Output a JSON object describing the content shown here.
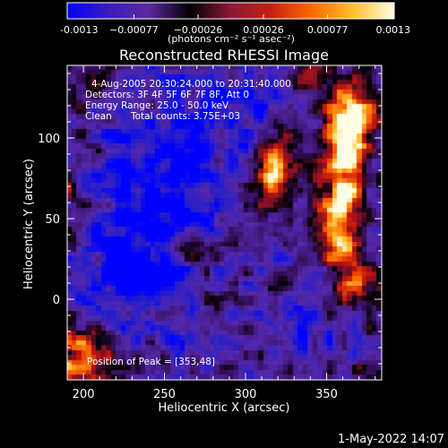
{
  "chart_data": {
    "type": "heatmap",
    "title": "Reconstructed RHESSI Image",
    "xlabel": "Heliocentric X (arcsec)",
    "ylabel": "Heliocentric Y (arcsec)",
    "xlim": [
      190,
      384
    ],
    "ylim": [
      -50,
      145
    ],
    "x_ticks": [
      200,
      250,
      300,
      350
    ],
    "y_ticks": [
      0,
      50,
      100
    ],
    "colorbar": {
      "label": "(photons cm⁻² s⁻¹ asec⁻²)",
      "range": [
        -0.0013,
        0.0013
      ],
      "tick_values": [
        -0.0013,
        -0.00077,
        -0.00026,
        0.00026,
        0.00077,
        0.0013
      ],
      "tick_labels": [
        "-0.0013",
        "−0.00077",
        "−0.00026",
        "0.00026",
        "0.00077",
        "0.0013"
      ],
      "colors": [
        "#0000ff",
        "#3a1bbf",
        "#5a2aa0",
        "#000000",
        "#8a1a3a",
        "#c82010",
        "#ff6a00",
        "#ffc030",
        "#ffffe0"
      ]
    },
    "annotations": {
      "time_range": "4-Aug-2005 20:30:24.000 to 20:31:40.000",
      "detectors": "Detectors: 3F 4F 5F 6F 7F 8F, Att 0",
      "energy_range": "Energy Range: 25.0 - 50.0 keV",
      "clean_label": "Clean",
      "total_counts": "Total counts: 3.75E+03",
      "peak": "Position of Peak = [353,48]"
    },
    "peak_position": [
      353,
      48
    ],
    "grid": false,
    "features": [
      {
        "x": 360,
        "y": 65,
        "sx": 10,
        "sy": 38,
        "amp": 1.3
      },
      {
        "x": 365,
        "y": 110,
        "sx": 10,
        "sy": 14,
        "amp": 1.0
      },
      {
        "x": 322,
        "y": 88,
        "sx": 10,
        "sy": 12,
        "amp": 0.95
      },
      {
        "x": 314,
        "y": 68,
        "sx": 6,
        "sy": 14,
        "amp": 0.6
      },
      {
        "x": 265,
        "y": 30,
        "sx": 12,
        "sy": 6,
        "amp": 0.55
      },
      {
        "x": 275,
        "y": 5,
        "sx": 8,
        "sy": 8,
        "amp": 0.6
      },
      {
        "x": 242,
        "y": 122,
        "sx": 8,
        "sy": 7,
        "amp": 0.55
      },
      {
        "x": 200,
        "y": -38,
        "sx": 10,
        "sy": 12,
        "amp": 1.25
      },
      {
        "x": 200,
        "y": 130,
        "sx": 10,
        "sy": 10,
        "amp": 0.45
      },
      {
        "x": 195,
        "y": 60,
        "sx": 6,
        "sy": 30,
        "amp": 0.35
      },
      {
        "x": 372,
        "y": 10,
        "sx": 8,
        "sy": 14,
        "amp": 0.45
      },
      {
        "x": 335,
        "y": 135,
        "sx": 10,
        "sy": 6,
        "amp": 0.4
      },
      {
        "x": 250,
        "y": 70,
        "sx": 30,
        "sy": 55,
        "amp": -0.7
      },
      {
        "x": 225,
        "y": 20,
        "sx": 20,
        "sy": 20,
        "amp": -0.45
      },
      {
        "x": 300,
        "y": 120,
        "sx": 18,
        "sy": 16,
        "amp": -0.35
      },
      {
        "x": 330,
        "y": -20,
        "sx": 22,
        "sy": 14,
        "amp": -0.25
      }
    ]
  },
  "timestamp": "1-May-2022 14:07"
}
